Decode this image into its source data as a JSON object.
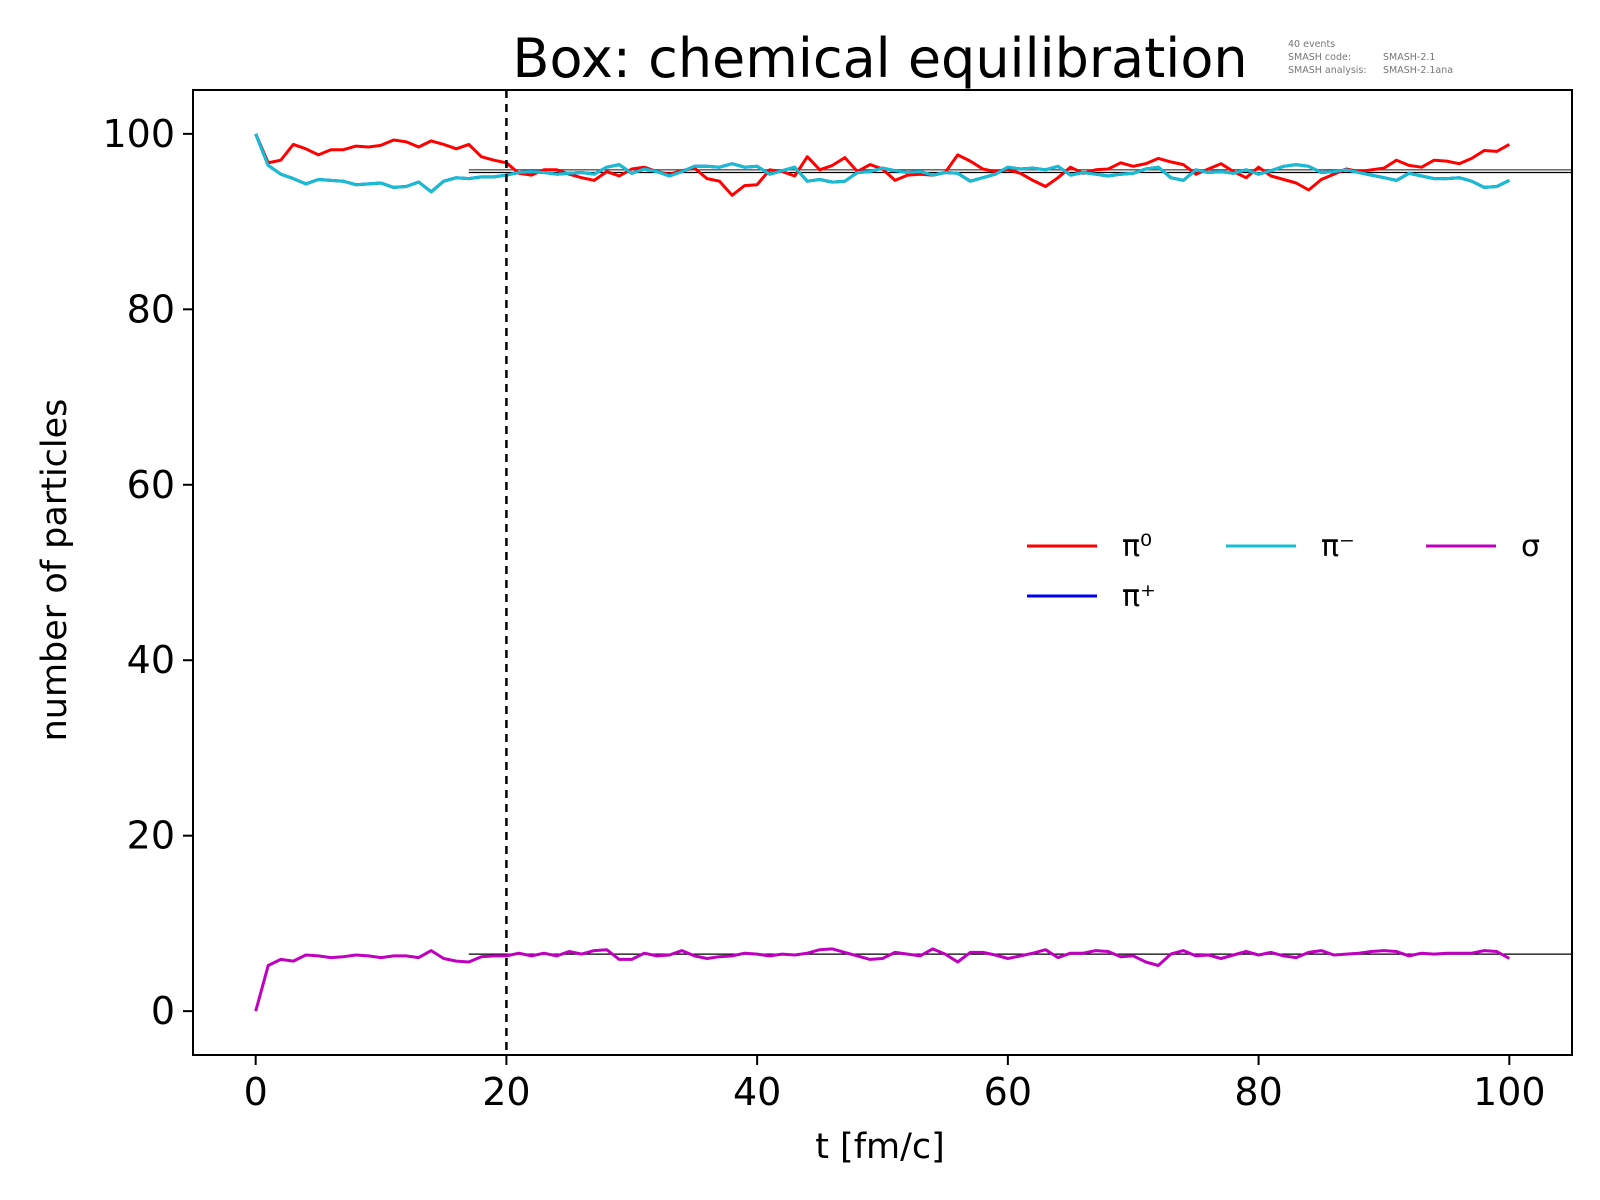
{
  "chart_data": {
    "type": "line",
    "title": "Box: chemical equilibration",
    "annotation": {
      "events": "40 events",
      "code_label": "SMASH code:",
      "code_value": "SMASH-2.1",
      "analysis_label": "SMASH analysis:",
      "analysis_value": "SMASH-2.1ana"
    },
    "xlabel": "t [fm/c]",
    "ylabel": "number of particles",
    "xlim": [
      -5,
      105
    ],
    "ylim": [
      -5,
      105
    ],
    "x_ticks": [
      0,
      20,
      40,
      60,
      80,
      100
    ],
    "y_ticks": [
      0,
      20,
      40,
      60,
      80,
      100
    ],
    "grid": false,
    "legend_position": "center-right",
    "vertical_marker": {
      "x": 20,
      "style": "dashed"
    },
    "reference_lines": [
      {
        "xmin": 17,
        "xmax": 105,
        "y": 95.9,
        "color": "#555555"
      },
      {
        "xmin": 17,
        "xmax": 105,
        "y": 95.6,
        "color": "#000000"
      },
      {
        "xmin": 17,
        "xmax": 105,
        "y": 6.5,
        "color": "#000000"
      }
    ],
    "x": [
      0,
      1,
      2,
      3,
      4,
      5,
      6,
      7,
      8,
      9,
      10,
      11,
      12,
      13,
      14,
      15,
      16,
      17,
      18,
      19,
      20,
      21,
      22,
      23,
      24,
      25,
      26,
      27,
      28,
      29,
      30,
      31,
      32,
      33,
      34,
      35,
      36,
      37,
      38,
      39,
      40,
      41,
      42,
      43,
      44,
      45,
      46,
      47,
      48,
      49,
      50,
      51,
      52,
      53,
      54,
      55,
      56,
      57,
      58,
      59,
      60,
      61,
      62,
      63,
      64,
      65,
      66,
      67,
      68,
      69,
      70,
      71,
      72,
      73,
      74,
      75,
      76,
      77,
      78,
      79,
      80,
      81,
      82,
      83,
      84,
      85,
      86,
      87,
      88,
      89,
      90,
      91,
      92,
      93,
      94,
      95,
      96,
      97,
      98,
      99,
      100
    ],
    "series": [
      {
        "name": "π⁰",
        "color": "#ff0000",
        "values": [
          100,
          96.7,
          97.0,
          98.8,
          98.3,
          97.6,
          98.2,
          98.2,
          98.6,
          98.5,
          98.7,
          99.3,
          99.1,
          98.5,
          99.2,
          98.8,
          98.3,
          98.8,
          97.4,
          97.0,
          96.7,
          95.5,
          95.3,
          95.9,
          95.9,
          95.4,
          95.0,
          94.7,
          95.7,
          95.2,
          96.0,
          96.2,
          95.7,
          95.4,
          95.8,
          96.1,
          94.9,
          94.6,
          93.0,
          94.1,
          94.2,
          95.9,
          95.7,
          95.2,
          97.4,
          95.9,
          96.4,
          97.3,
          95.7,
          96.5,
          96.0,
          94.7,
          95.3,
          95.4,
          95.3,
          95.6,
          97.6,
          96.9,
          96.0,
          95.7,
          95.9,
          95.5,
          94.7,
          94.0,
          95.0,
          96.2,
          95.5,
          95.9,
          96.0,
          96.7,
          96.3,
          96.6,
          97.2,
          96.8,
          96.5,
          95.4,
          96.0,
          96.6,
          95.7,
          95.0,
          96.2,
          95.2,
          94.8,
          94.4,
          93.6,
          94.8,
          95.4,
          96.0,
          95.7,
          95.9,
          96.1,
          97.0,
          96.4,
          96.2,
          97.0,
          96.9,
          96.6,
          97.2,
          98.1,
          98.0,
          98.8
        ]
      },
      {
        "name": "π⁺",
        "color": "#0000ff",
        "values": [
          100,
          96.4,
          95.4,
          94.9,
          94.3,
          94.8,
          94.7,
          94.6,
          94.2,
          94.3,
          94.4,
          93.9,
          94.0,
          94.5,
          93.4,
          94.6,
          95.0,
          94.9,
          95.1,
          95.1,
          95.3,
          95.6,
          95.7,
          95.6,
          95.4,
          95.5,
          95.6,
          95.4,
          96.2,
          96.5,
          95.5,
          96.0,
          95.7,
          95.2,
          95.7,
          96.3,
          96.3,
          96.2,
          96.6,
          96.2,
          96.3,
          95.4,
          95.8,
          96.2,
          94.6,
          94.8,
          94.5,
          94.6,
          95.6,
          95.7,
          96.1,
          95.8,
          95.6,
          95.7,
          95.3,
          95.6,
          95.5,
          94.6,
          95.0,
          95.4,
          96.2,
          96.0,
          96.1,
          95.9,
          96.3,
          95.3,
          95.6,
          95.4,
          95.2,
          95.4,
          95.5,
          96.0,
          96.2,
          95.0,
          94.7,
          95.9,
          95.6,
          95.7,
          95.5,
          95.9,
          95.4,
          95.8,
          96.3,
          96.5,
          96.3,
          95.6,
          95.7,
          95.9,
          95.6,
          95.3,
          95.0,
          94.7,
          95.5,
          95.2,
          94.9,
          94.9,
          95.0,
          94.6,
          93.9,
          94.0,
          94.7
        ]
      },
      {
        "name": "π⁻",
        "color": "#17becf",
        "values": [
          100,
          96.4,
          95.4,
          94.9,
          94.3,
          94.8,
          94.7,
          94.6,
          94.2,
          94.3,
          94.4,
          93.9,
          94.0,
          94.5,
          93.4,
          94.6,
          95.0,
          94.9,
          95.1,
          95.1,
          95.3,
          95.6,
          95.7,
          95.6,
          95.4,
          95.5,
          95.6,
          95.4,
          96.2,
          96.5,
          95.5,
          96.0,
          95.7,
          95.2,
          95.7,
          96.3,
          96.3,
          96.2,
          96.6,
          96.2,
          96.3,
          95.4,
          95.8,
          96.2,
          94.6,
          94.8,
          94.5,
          94.6,
          95.6,
          95.7,
          96.1,
          95.8,
          95.6,
          95.7,
          95.3,
          95.6,
          95.5,
          94.6,
          95.0,
          95.4,
          96.2,
          96.0,
          96.1,
          95.9,
          96.3,
          95.3,
          95.6,
          95.4,
          95.2,
          95.4,
          95.5,
          96.0,
          96.2,
          95.0,
          94.7,
          95.9,
          95.6,
          95.7,
          95.5,
          95.9,
          95.4,
          95.8,
          96.3,
          96.5,
          96.3,
          95.6,
          95.7,
          95.9,
          95.6,
          95.3,
          95.0,
          94.7,
          95.5,
          95.2,
          94.9,
          94.9,
          95.0,
          94.6,
          93.9,
          94.0,
          94.7
        ]
      },
      {
        "name": "σ",
        "color": "#bf00bf",
        "values": [
          0,
          5.2,
          5.9,
          5.7,
          6.4,
          6.3,
          6.1,
          6.2,
          6.4,
          6.3,
          6.1,
          6.3,
          6.3,
          6.1,
          6.9,
          6.0,
          5.7,
          5.6,
          6.2,
          6.3,
          6.3,
          6.6,
          6.3,
          6.6,
          6.3,
          6.8,
          6.5,
          6.9,
          7.0,
          5.9,
          5.9,
          6.6,
          6.3,
          6.4,
          6.9,
          6.3,
          6.0,
          6.2,
          6.3,
          6.6,
          6.5,
          6.3,
          6.5,
          6.4,
          6.6,
          7.0,
          7.1,
          6.7,
          6.3,
          5.9,
          6.0,
          6.7,
          6.5,
          6.3,
          7.1,
          6.5,
          5.6,
          6.7,
          6.7,
          6.4,
          6.0,
          6.3,
          6.6,
          7.0,
          6.1,
          6.6,
          6.6,
          6.9,
          6.8,
          6.2,
          6.3,
          5.6,
          5.2,
          6.5,
          6.9,
          6.3,
          6.4,
          6.0,
          6.4,
          6.8,
          6.4,
          6.7,
          6.3,
          6.1,
          6.7,
          6.9,
          6.4,
          6.5,
          6.6,
          6.8,
          6.9,
          6.8,
          6.3,
          6.6,
          6.5,
          6.6,
          6.6,
          6.6,
          6.9,
          6.8,
          6.0
        ]
      }
    ],
    "legend_layout": [
      [
        "π⁰",
        "π⁻",
        "σ"
      ],
      [
        "π⁺"
      ]
    ]
  }
}
